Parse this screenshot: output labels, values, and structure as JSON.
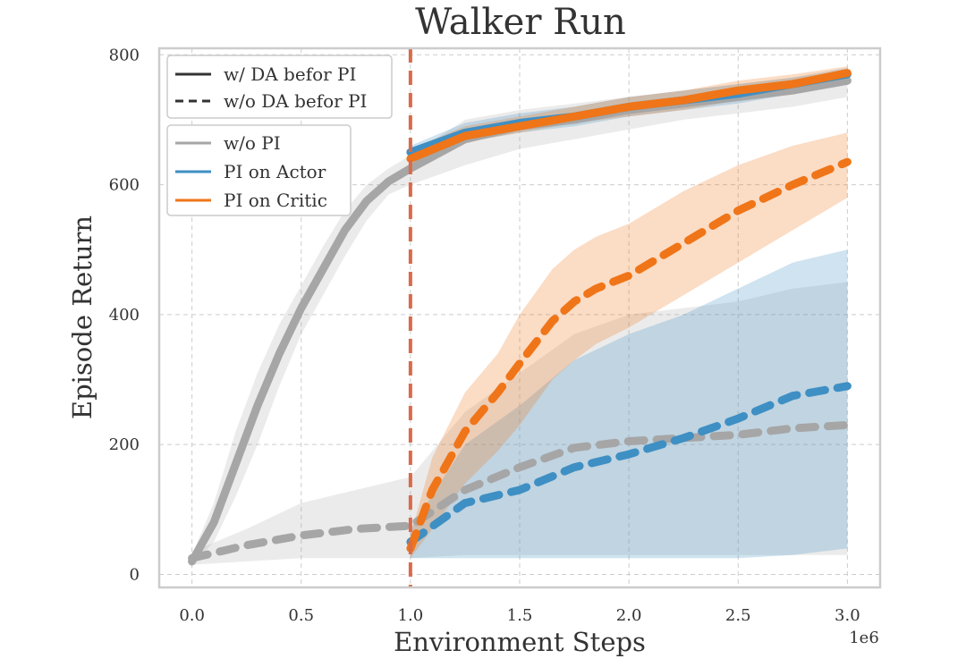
{
  "chart_data": {
    "type": "line",
    "title": "Walker Run",
    "xlabel": "Environment Steps",
    "ylabel": "Episode Return",
    "x_multiplier_label": "1e6",
    "xlim": [
      -0.15,
      3.15
    ],
    "ylim": [
      -20,
      810
    ],
    "xticks": [
      0.0,
      0.5,
      1.0,
      1.5,
      2.0,
      2.5,
      3.0
    ],
    "xtick_labels": [
      "0.0",
      "0.5",
      "1.0",
      "1.5",
      "2.0",
      "2.5",
      "3.0"
    ],
    "yticks": [
      0,
      200,
      400,
      600,
      800
    ],
    "ytick_labels": [
      "0",
      "200",
      "400",
      "600",
      "800"
    ],
    "grid": true,
    "colors": {
      "wo_pi": "#a6a6a6",
      "pi_actor": "#3e8fc4",
      "pi_critic": "#ef7518",
      "vline": "#d96b4a"
    },
    "vline": {
      "x": 1.0,
      "style": "dashed"
    },
    "legend": {
      "placement": "top-left",
      "style_entries": [
        {
          "label": "w/ DA befor PI",
          "linestyle": "solid"
        },
        {
          "label": "w/o DA befor PI",
          "linestyle": "dashed"
        }
      ],
      "color_entries": [
        {
          "label": "w/o PI",
          "color": "#a6a6a6"
        },
        {
          "label": "PI on Actor",
          "color": "#3e8fc4"
        },
        {
          "label": "PI on Critic",
          "color": "#ef7518"
        }
      ]
    },
    "series": [
      {
        "name": "w/o PI",
        "group": "w/ DA befor PI",
        "color": "#a6a6a6",
        "linestyle": "solid",
        "x": [
          0.0,
          0.1,
          0.2,
          0.3,
          0.4,
          0.5,
          0.6,
          0.7,
          0.8,
          0.9,
          1.0,
          1.25,
          1.5,
          1.75,
          2.0,
          2.25,
          2.5,
          2.75,
          3.0
        ],
        "y": [
          20,
          80,
          170,
          260,
          340,
          410,
          470,
          530,
          575,
          605,
          625,
          670,
          690,
          700,
          715,
          725,
          735,
          745,
          760
        ],
        "lower": [
          15,
          50,
          120,
          200,
          290,
          370,
          430,
          490,
          545,
          585,
          600,
          630,
          655,
          670,
          685,
          700,
          710,
          720,
          735
        ],
        "upper": [
          30,
          110,
          220,
          310,
          385,
          445,
          505,
          560,
          600,
          625,
          645,
          700,
          715,
          725,
          735,
          745,
          755,
          765,
          775
        ]
      },
      {
        "name": "PI on Actor",
        "group": "w/ DA befor PI",
        "color": "#3e8fc4",
        "linestyle": "solid",
        "x": [
          1.0,
          1.25,
          1.5,
          1.75,
          2.0,
          2.25,
          2.5,
          2.75,
          3.0
        ],
        "y": [
          650,
          680,
          695,
          705,
          720,
          730,
          740,
          755,
          770
        ],
        "lower": [
          640,
          665,
          680,
          690,
          705,
          715,
          725,
          740,
          755
        ],
        "upper": [
          660,
          695,
          710,
          720,
          735,
          745,
          755,
          765,
          780
        ]
      },
      {
        "name": "PI on Critic",
        "group": "w/ DA befor PI",
        "color": "#ef7518",
        "linestyle": "solid",
        "x": [
          1.0,
          1.25,
          1.5,
          1.75,
          2.0,
          2.25,
          2.5,
          2.75,
          3.0
        ],
        "y": [
          640,
          675,
          690,
          705,
          720,
          730,
          745,
          755,
          772
        ],
        "lower": [
          630,
          665,
          680,
          695,
          705,
          715,
          730,
          740,
          760
        ],
        "upper": [
          655,
          690,
          705,
          720,
          735,
          745,
          760,
          770,
          782
        ]
      },
      {
        "name": "w/o PI",
        "group": "w/o DA befor PI",
        "color": "#a6a6a6",
        "linestyle": "dashed",
        "x": [
          0.0,
          0.25,
          0.5,
          0.75,
          1.0,
          1.25,
          1.5,
          1.75,
          2.0,
          2.25,
          2.5,
          2.75,
          3.0
        ],
        "y": [
          25,
          45,
          60,
          70,
          75,
          130,
          165,
          195,
          205,
          210,
          215,
          225,
          230
        ],
        "lower": [
          15,
          20,
          25,
          25,
          25,
          30,
          30,
          30,
          30,
          30,
          30,
          30,
          30
        ],
        "upper": [
          35,
          70,
          110,
          130,
          150,
          250,
          310,
          370,
          400,
          410,
          420,
          440,
          450
        ]
      },
      {
        "name": "PI on Actor",
        "group": "w/o DA befor PI",
        "color": "#3e8fc4",
        "linestyle": "dashed",
        "x": [
          1.0,
          1.25,
          1.5,
          1.75,
          2.0,
          2.25,
          2.5,
          2.75,
          3.0
        ],
        "y": [
          50,
          110,
          130,
          165,
          185,
          210,
          240,
          275,
          290
        ],
        "lower": [
          25,
          25,
          25,
          25,
          25,
          25,
          25,
          30,
          40
        ],
        "upper": [
          70,
          200,
          260,
          330,
          370,
          400,
          440,
          480,
          500
        ]
      },
      {
        "name": "PI on Critic",
        "group": "w/o DA befor PI",
        "color": "#ef7518",
        "linestyle": "dashed",
        "x": [
          1.0,
          1.1,
          1.25,
          1.4,
          1.5,
          1.65,
          1.75,
          1.85,
          2.0,
          2.15,
          2.25,
          2.5,
          2.75,
          3.0
        ],
        "y": [
          40,
          130,
          220,
          280,
          325,
          390,
          420,
          440,
          460,
          490,
          510,
          560,
          600,
          635
        ],
        "lower": [
          25,
          70,
          140,
          190,
          230,
          300,
          330,
          355,
          380,
          410,
          430,
          480,
          530,
          580
        ],
        "upper": [
          60,
          180,
          280,
          340,
          400,
          470,
          500,
          520,
          540,
          570,
          590,
          630,
          660,
          680
        ]
      }
    ]
  }
}
